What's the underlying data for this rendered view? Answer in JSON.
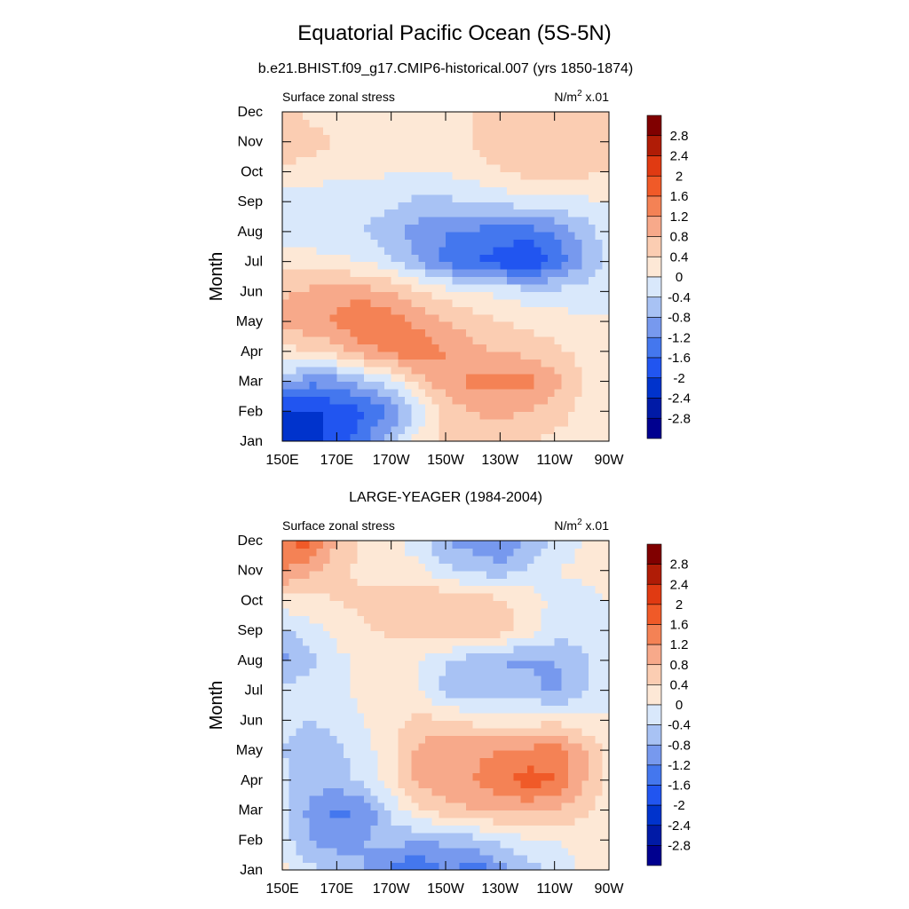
{
  "figure": {
    "title": "Equatorial Pacific Ocean (5S-5N)",
    "subtitle": "b.e21.BHIST.f09_g17.CMIP6-historical.007 (yrs 1850-1874)"
  },
  "chart_data": [
    {
      "type": "heatmap",
      "panel_title": "",
      "left_string": "Surface zonal stress",
      "units_base": "N/m",
      "units_exp": "2",
      "units_scale": " x.01",
      "ylabel": "Month",
      "x_ticks": [
        "150E",
        "170E",
        "170W",
        "150W",
        "130W",
        "110W",
        "90W"
      ],
      "x_lon": [
        150,
        170,
        190,
        210,
        230,
        250,
        270
      ],
      "xlim": [
        150,
        270
      ],
      "y_ticks": [
        "Jan",
        "Feb",
        "Mar",
        "Apr",
        "May",
        "Jun",
        "Jul",
        "Aug",
        "Sep",
        "Oct",
        "Nov",
        "Dec"
      ],
      "ylim": [
        0,
        11
      ],
      "rows": [
        [
          -2.0,
          -2.1,
          -1.9,
          -1.3,
          -0.5,
          0.2,
          0.5,
          0.6,
          0.5,
          0.4,
          0.3,
          0.2,
          0.1
        ],
        [
          -2.2,
          -2.1,
          -1.9,
          -1.7,
          -1.2,
          -0.3,
          0.5,
          0.8,
          0.9,
          0.8,
          0.6,
          0.3,
          0.1
        ],
        [
          -0.6,
          -1.1,
          -1.0,
          -0.6,
          -0.2,
          0.6,
          1.1,
          1.3,
          1.3,
          1.4,
          1.0,
          0.4,
          0.1
        ],
        [
          0.2,
          0.4,
          0.6,
          1.0,
          1.3,
          1.5,
          1.2,
          0.9,
          0.8,
          0.7,
          0.5,
          0.3,
          0.1
        ],
        [
          1.0,
          1.1,
          1.3,
          1.7,
          1.5,
          1.1,
          0.8,
          0.6,
          0.4,
          0.3,
          0.2,
          0.1,
          0.0
        ],
        [
          0.7,
          0.9,
          1.0,
          1.0,
          0.8,
          0.5,
          0.2,
          0.0,
          -0.1,
          -0.2,
          -0.3,
          -0.2,
          0.0
        ],
        [
          0.3,
          0.2,
          0.1,
          0.0,
          -0.3,
          -0.8,
          -1.3,
          -1.6,
          -1.8,
          -2.1,
          -1.5,
          -0.9,
          -0.2
        ],
        [
          -0.2,
          -0.3,
          -0.3,
          -0.4,
          -0.7,
          -1.0,
          -1.2,
          -1.3,
          -1.4,
          -1.4,
          -1.2,
          -0.7,
          -0.2
        ],
        [
          -0.3,
          -0.3,
          -0.2,
          -0.2,
          -0.3,
          -0.5,
          -0.5,
          -0.4,
          -0.3,
          -0.2,
          -0.1,
          -0.1,
          0.0
        ],
        [
          0.3,
          0.2,
          0.1,
          0.1,
          0.0,
          0.0,
          0.0,
          0.2,
          0.4,
          0.5,
          0.5,
          0.5,
          0.4
        ],
        [
          0.7,
          0.6,
          0.4,
          0.2,
          0.1,
          0.1,
          0.2,
          0.4,
          0.6,
          0.6,
          0.6,
          0.5,
          0.4
        ],
        [
          0.5,
          0.3,
          0.2,
          0.1,
          0.1,
          0.2,
          0.3,
          0.4,
          0.5,
          0.5,
          0.5,
          0.5,
          0.4
        ]
      ],
      "colorbar": {
        "labels": [
          "2.8",
          "2.4",
          "2",
          "1.6",
          "1.2",
          "0.8",
          "0.4",
          "0",
          "-0.4",
          "-0.8",
          "-1.2",
          "-1.6",
          "-2",
          "-2.4",
          "-2.8"
        ],
        "levels": [
          -2.8,
          -2.4,
          -2.0,
          -1.6,
          -1.2,
          -0.8,
          -0.4,
          0.0,
          0.4,
          0.8,
          1.2,
          1.6,
          2.0,
          2.4,
          2.8
        ],
        "colors": [
          "#00008f",
          "#001aa6",
          "#0033cc",
          "#2155f0",
          "#4477ee",
          "#7799ee",
          "#a8c2f4",
          "#d9e8fb",
          "#fde8d6",
          "#fbcdb2",
          "#f7a98a",
          "#f48255",
          "#f05a28",
          "#e03a12",
          "#b01c06",
          "#800000"
        ]
      }
    },
    {
      "type": "heatmap",
      "panel_title": "LARGE-YEAGER (1984-2004)",
      "left_string": "Surface zonal stress",
      "units_base": "N/m",
      "units_exp": "2",
      "units_scale": " x.01",
      "ylabel": "Month",
      "x_ticks": [
        "150E",
        "170E",
        "170W",
        "150W",
        "130W",
        "110W",
        "90W"
      ],
      "x_lon": [
        150,
        170,
        190,
        210,
        230,
        250,
        270
      ],
      "xlim": [
        150,
        270
      ],
      "y_ticks": [
        "Jan",
        "Feb",
        "Mar",
        "Apr",
        "May",
        "Jun",
        "Jul",
        "Aug",
        "Sep",
        "Oct",
        "Nov",
        "Dec"
      ],
      "ylim": [
        0,
        11
      ],
      "rows": [
        [
          0.2,
          -0.3,
          -0.5,
          -0.8,
          -1.3,
          -1.6,
          -1.1,
          -1.5,
          -1.0,
          -0.6,
          -0.3,
          0.1,
          0.2
        ],
        [
          -0.2,
          -0.8,
          -1.0,
          -0.8,
          -0.6,
          -0.8,
          -0.7,
          -0.6,
          -0.3,
          -0.1,
          0.0,
          0.1,
          0.1
        ],
        [
          -0.3,
          -0.9,
          -1.3,
          -1.2,
          -0.3,
          0.3,
          0.6,
          0.8,
          0.9,
          0.9,
          0.8,
          0.5,
          0.2
        ],
        [
          -0.3,
          -0.6,
          -0.6,
          -0.3,
          0.3,
          0.9,
          1.1,
          1.2,
          1.5,
          1.8,
          1.6,
          0.9,
          0.3
        ],
        [
          -0.4,
          -0.6,
          -0.5,
          -0.2,
          0.3,
          0.9,
          1.2,
          1.1,
          1.2,
          1.3,
          1.5,
          0.9,
          0.3
        ],
        [
          -0.3,
          -0.4,
          -0.3,
          0.0,
          0.3,
          0.5,
          0.5,
          0.3,
          0.2,
          0.2,
          0.3,
          0.1,
          0.0
        ],
        [
          -0.3,
          -0.2,
          -0.1,
          0.1,
          0.2,
          0.0,
          -0.5,
          -0.8,
          -0.7,
          -0.6,
          -1.0,
          -0.5,
          0.0
        ],
        [
          -0.9,
          -0.5,
          -0.1,
          0.1,
          0.2,
          0.0,
          -0.4,
          -0.6,
          -0.8,
          -0.9,
          -0.8,
          -0.5,
          0.0
        ],
        [
          -0.5,
          -0.2,
          0.1,
          0.3,
          0.5,
          0.6,
          0.7,
          0.8,
          0.6,
          0.2,
          -0.2,
          -0.3,
          0.0
        ],
        [
          0.2,
          0.3,
          0.4,
          0.5,
          0.7,
          0.8,
          0.7,
          0.7,
          0.5,
          0.2,
          -0.1,
          -0.2,
          0.0
        ],
        [
          1.2,
          0.9,
          0.5,
          0.3,
          0.2,
          0.1,
          -0.3,
          -0.5,
          -0.6,
          -0.3,
          0.0,
          0.1,
          0.3
        ],
        [
          1.5,
          1.8,
          0.8,
          0.3,
          0.1,
          -0.2,
          -0.8,
          -1.0,
          -1.3,
          -0.8,
          -0.4,
          0.0,
          0.2
        ]
      ],
      "colorbar": {
        "labels": [
          "2.8",
          "2.4",
          "2",
          "1.6",
          "1.2",
          "0.8",
          "0.4",
          "0",
          "-0.4",
          "-0.8",
          "-1.2",
          "-1.6",
          "-2",
          "-2.4",
          "-2.8"
        ],
        "levels": [
          -2.8,
          -2.4,
          -2.0,
          -1.6,
          -1.2,
          -0.8,
          -0.4,
          0.0,
          0.4,
          0.8,
          1.2,
          1.6,
          2.0,
          2.4,
          2.8
        ],
        "colors": [
          "#00008f",
          "#001aa6",
          "#0033cc",
          "#2155f0",
          "#4477ee",
          "#7799ee",
          "#a8c2f4",
          "#d9e8fb",
          "#fde8d6",
          "#fbcdb2",
          "#f7a98a",
          "#f48255",
          "#f05a28",
          "#e03a12",
          "#b01c06",
          "#800000"
        ]
      }
    }
  ]
}
